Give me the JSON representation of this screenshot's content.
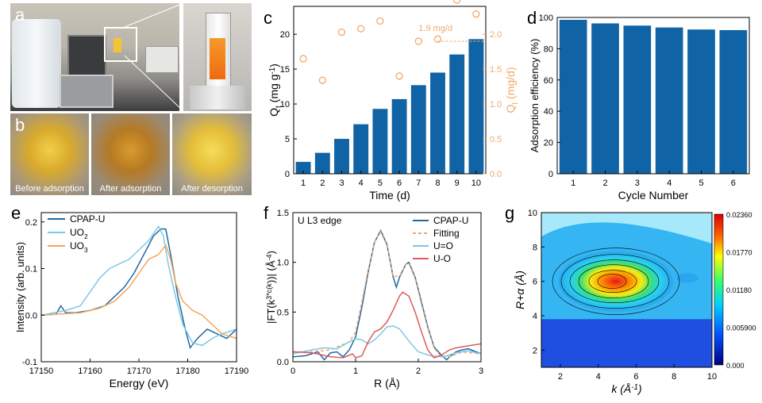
{
  "colors": {
    "bar_blue": "#1064a6",
    "orange": "#f2a968",
    "cpapu": "#1c6aa6",
    "uo2": "#7ec8e3",
    "uo3": "#f6a55a",
    "fit_orange": "#f3a36a",
    "uo_red": "#e05a5a",
    "uo_light": "#7ec8e3"
  },
  "panels": {
    "a": "a",
    "b": "b",
    "c": "c",
    "d": "d",
    "e": "e",
    "f": "f",
    "g": "g"
  },
  "photo_b_captions": [
    "Before adsorption",
    "After adsorption",
    "After desorption"
  ],
  "chart_data": [
    {
      "id": "c",
      "type": "bar",
      "xlabel": "Time (d)",
      "ylabel": "Q_t (mg g^-1)",
      "y2label": "Q_t (mg/d)",
      "categories": [
        "1",
        "2",
        "3",
        "4",
        "5",
        "6",
        "7",
        "8",
        "9",
        "10"
      ],
      "values": [
        1.7,
        3.0,
        5.0,
        7.1,
        9.3,
        10.7,
        12.7,
        14.5,
        17.1,
        19.3
      ],
      "ylim": [
        0,
        24
      ],
      "yticks": [
        "0",
        "5",
        "10",
        "15",
        "20"
      ],
      "y2lim": [
        0,
        2.4
      ],
      "y2ticks": [
        "0.0",
        "0.5",
        "1.0",
        "1.5",
        "2.0"
      ],
      "scatter_values": [
        1.65,
        1.34,
        2.03,
        2.08,
        2.19,
        1.4,
        1.9,
        1.93,
        2.49,
        2.29
      ],
      "annotation": "1.9 mg/d"
    },
    {
      "id": "d",
      "type": "bar",
      "xlabel": "Cycle Number",
      "ylabel": "Adsorption efficiency (%)",
      "categories": [
        "1",
        "2",
        "3",
        "4",
        "5",
        "6"
      ],
      "values": [
        98.5,
        96.2,
        94.8,
        93.6,
        92.3,
        91.9
      ],
      "ylim": [
        0,
        100
      ],
      "yticks": [
        "0",
        "20",
        "40",
        "60",
        "80",
        "100"
      ]
    },
    {
      "id": "e",
      "type": "line",
      "xlabel": "Energy (eV)",
      "ylabel": "Intensity (arb. units)",
      "xlim": [
        17150,
        17190
      ],
      "ylim": [
        -0.1,
        0.22
      ],
      "xticks": [
        "17150",
        "17160",
        "17170",
        "17180",
        "17190"
      ],
      "yticks": [
        "-0.1",
        "0.0",
        "0.1",
        "0.2"
      ],
      "series": [
        {
          "name": "CPAP-U",
          "points": [
            [
              17150,
              0.0
            ],
            [
              17153,
              0.002
            ],
            [
              17154,
              0.02
            ],
            [
              17155,
              0.005
            ],
            [
              17157,
              0.005
            ],
            [
              17160,
              0.01
            ],
            [
              17163,
              0.02
            ],
            [
              17165,
              0.04
            ],
            [
              17167,
              0.06
            ],
            [
              17169,
              0.09
            ],
            [
              17171,
              0.13
            ],
            [
              17173,
              0.17
            ],
            [
              17174.5,
              0.185
            ],
            [
              17175.5,
              0.185
            ],
            [
              17176.5,
              0.13
            ],
            [
              17178,
              0.04
            ],
            [
              17179.5,
              -0.03
            ],
            [
              17180.5,
              -0.07
            ],
            [
              17182,
              -0.05
            ],
            [
              17184,
              -0.03
            ],
            [
              17186,
              -0.04
            ],
            [
              17188,
              -0.05
            ],
            [
              17190,
              -0.03
            ]
          ]
        },
        {
          "name": "UO2",
          "points": [
            [
              17150,
              0.0
            ],
            [
              17155,
              0.01
            ],
            [
              17158,
              0.02
            ],
            [
              17160,
              0.05
            ],
            [
              17162,
              0.08
            ],
            [
              17164,
              0.1
            ],
            [
              17166,
              0.11
            ],
            [
              17168,
              0.12
            ],
            [
              17170,
              0.14
            ],
            [
              17172,
              0.16
            ],
            [
              17174,
              0.19
            ],
            [
              17175,
              0.17
            ],
            [
              17176,
              0.11
            ],
            [
              17177.5,
              0.04
            ],
            [
              17179,
              -0.02
            ],
            [
              17181,
              -0.06
            ],
            [
              17183,
              -0.065
            ],
            [
              17185,
              -0.05
            ],
            [
              17187,
              -0.04
            ],
            [
              17190,
              -0.03
            ]
          ]
        },
        {
          "name": "UO3",
          "points": [
            [
              17150,
              0.0
            ],
            [
              17158,
              0.005
            ],
            [
              17162,
              0.015
            ],
            [
              17165,
              0.03
            ],
            [
              17168,
              0.06
            ],
            [
              17170,
              0.09
            ],
            [
              17172,
              0.12
            ],
            [
              17174,
              0.13
            ],
            [
              17175.5,
              0.15
            ],
            [
              17176.5,
              0.12
            ],
            [
              17177.5,
              0.07
            ],
            [
              17179,
              0.03
            ],
            [
              17181,
              0.01
            ],
            [
              17183,
              0.0
            ],
            [
              17185,
              -0.02
            ],
            [
              17187,
              -0.04
            ],
            [
              17190,
              -0.05
            ]
          ]
        }
      ]
    },
    {
      "id": "f",
      "type": "line",
      "title": "U L3 edge",
      "xlabel": "R (Å)",
      "ylabel": "|FT(k^3*c(k))| (Å^-4)",
      "xlim": [
        0,
        3
      ],
      "ylim": [
        0,
        1.5
      ],
      "xticks": [
        "0",
        "1",
        "2",
        "3"
      ],
      "yticks": [
        "0.0",
        "0.5",
        "1.0",
        "1.5"
      ],
      "series": [
        {
          "name": "CPAP-U",
          "points": [
            [
              0,
              0.05
            ],
            [
              0.2,
              0.06
            ],
            [
              0.4,
              0.1
            ],
            [
              0.5,
              0.02
            ],
            [
              0.6,
              0.09
            ],
            [
              0.7,
              0.1
            ],
            [
              0.8,
              0.05
            ],
            [
              0.9,
              0.12
            ],
            [
              1.0,
              0.25
            ],
            [
              1.1,
              0.55
            ],
            [
              1.2,
              0.9
            ],
            [
              1.3,
              1.2
            ],
            [
              1.4,
              1.32
            ],
            [
              1.5,
              1.18
            ],
            [
              1.6,
              0.85
            ],
            [
              1.65,
              0.75
            ],
            [
              1.7,
              0.85
            ],
            [
              1.8,
              0.98
            ],
            [
              1.85,
              1.0
            ],
            [
              1.95,
              0.85
            ],
            [
              2.05,
              0.6
            ],
            [
              2.15,
              0.35
            ],
            [
              2.25,
              0.15
            ],
            [
              2.35,
              0.08
            ],
            [
              2.45,
              0.02
            ],
            [
              2.5,
              0.05
            ],
            [
              2.6,
              0.1
            ],
            [
              2.7,
              0.12
            ],
            [
              2.8,
              0.13
            ],
            [
              3.0,
              0.08
            ]
          ]
        },
        {
          "name": "Fitting",
          "points": [
            [
              0,
              0.1
            ],
            [
              0.3,
              0.1
            ],
            [
              0.6,
              0.12
            ],
            [
              0.9,
              0.2
            ],
            [
              1.0,
              0.3
            ],
            [
              1.1,
              0.6
            ],
            [
              1.2,
              0.92
            ],
            [
              1.3,
              1.2
            ],
            [
              1.4,
              1.31
            ],
            [
              1.5,
              1.17
            ],
            [
              1.6,
              0.86
            ],
            [
              1.7,
              0.86
            ],
            [
              1.8,
              0.98
            ],
            [
              1.85,
              0.99
            ],
            [
              1.95,
              0.84
            ],
            [
              2.05,
              0.58
            ],
            [
              2.15,
              0.34
            ],
            [
              2.25,
              0.14
            ],
            [
              2.35,
              0.06
            ],
            [
              2.5,
              0.05
            ],
            [
              2.7,
              0.1
            ],
            [
              3.0,
              0.08
            ]
          ]
        },
        {
          "name": "U=O",
          "points": [
            [
              0,
              0.08
            ],
            [
              0.3,
              0.12
            ],
            [
              0.5,
              0.14
            ],
            [
              0.7,
              0.13
            ],
            [
              0.9,
              0.2
            ],
            [
              1.0,
              0.23
            ],
            [
              1.1,
              0.22
            ],
            [
              1.2,
              0.18
            ],
            [
              1.3,
              0.22
            ],
            [
              1.4,
              0.28
            ],
            [
              1.5,
              0.35
            ],
            [
              1.6,
              0.36
            ],
            [
              1.7,
              0.33
            ],
            [
              1.8,
              0.25
            ],
            [
              1.9,
              0.17
            ],
            [
              2.0,
              0.1
            ],
            [
              2.2,
              0.06
            ],
            [
              2.4,
              0.05
            ],
            [
              2.6,
              0.09
            ],
            [
              2.8,
              0.11
            ],
            [
              3.0,
              0.08
            ]
          ]
        },
        {
          "name": "U-O",
          "points": [
            [
              0,
              0.1
            ],
            [
              0.3,
              0.09
            ],
            [
              0.6,
              0.05
            ],
            [
              0.8,
              0.04
            ],
            [
              0.95,
              0.08
            ],
            [
              1.0,
              0.04
            ],
            [
              1.1,
              0.06
            ],
            [
              1.2,
              0.2
            ],
            [
              1.3,
              0.3
            ],
            [
              1.4,
              0.33
            ],
            [
              1.5,
              0.4
            ],
            [
              1.6,
              0.52
            ],
            [
              1.7,
              0.66
            ],
            [
              1.75,
              0.7
            ],
            [
              1.85,
              0.66
            ],
            [
              1.95,
              0.5
            ],
            [
              2.05,
              0.3
            ],
            [
              2.15,
              0.12
            ],
            [
              2.25,
              0.04
            ],
            [
              2.35,
              0.06
            ],
            [
              2.5,
              0.12
            ],
            [
              2.6,
              0.14
            ],
            [
              2.8,
              0.16
            ],
            [
              3.0,
              0.18
            ]
          ]
        }
      ]
    },
    {
      "id": "g",
      "type": "heatmap",
      "xlabel": "k (Å^-1)",
      "ylabel": "R+α (Å)",
      "xlim": [
        1,
        10
      ],
      "ylim": [
        1,
        10
      ],
      "xticks": [
        "2",
        "4",
        "6",
        "8",
        "10"
      ],
      "yticks": [
        "2",
        "4",
        "6",
        "8",
        "10"
      ],
      "colorbar": [
        "0.02360",
        "0.01770",
        "0.01180",
        "0.005900",
        "0.000"
      ],
      "peak": {
        "k": 4.6,
        "r": 6.0,
        "value": 0.0236
      }
    }
  ]
}
